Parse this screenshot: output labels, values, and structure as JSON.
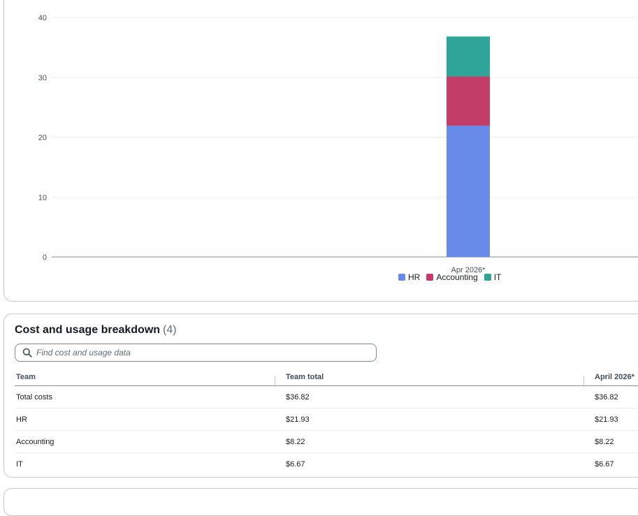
{
  "chart_data": {
    "type": "bar",
    "stacked": true,
    "categories": [
      "Apr 2026*"
    ],
    "series": [
      {
        "name": "HR",
        "values": [
          21.93
        ],
        "color": "#688ae8"
      },
      {
        "name": "Accounting",
        "values": [
          8.22
        ],
        "color": "#c33d69"
      },
      {
        "name": "IT",
        "values": [
          6.67
        ],
        "color": "#2ea597"
      }
    ],
    "ylim": [
      0,
      40
    ],
    "yticks": [
      0,
      10,
      20,
      30,
      40
    ],
    "grid": true,
    "legend": "bottom-center"
  },
  "breakdown": {
    "title": "Cost and usage breakdown",
    "count": "(4)",
    "search_placeholder": "Find cost and usage data",
    "columns": [
      "Team",
      "Team total",
      "April 2026*"
    ],
    "rows": [
      [
        "Total costs",
        "$36.82",
        "$36.82"
      ],
      [
        "HR",
        "$21.93",
        "$21.93"
      ],
      [
        "Accounting",
        "$8.22",
        "$8.22"
      ],
      [
        "IT",
        "$6.67",
        "$6.67"
      ]
    ]
  }
}
